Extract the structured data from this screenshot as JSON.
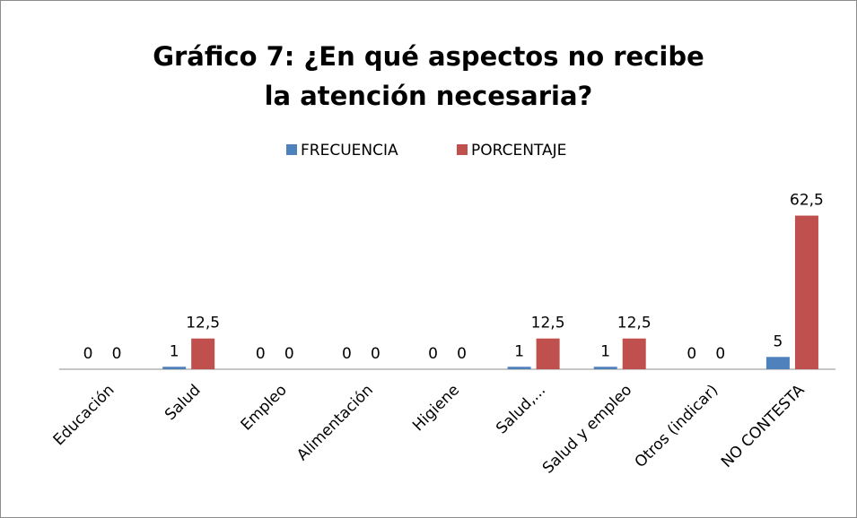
{
  "chart_data": {
    "type": "bar",
    "title": "Gráfico 7: ¿En qué aspectos no recibe la atención necesaria?",
    "categories": [
      "Educación",
      "Salud",
      "Empleo",
      "Alimentación",
      "Higiene",
      "Salud,...",
      "Salud y empleo",
      "Otros (indicar)",
      "NO CONTESTA"
    ],
    "series": [
      {
        "name": "FRECUENCIA",
        "color": "#4f81bd",
        "values": [
          0,
          1,
          0,
          0,
          0,
          1,
          1,
          0,
          5
        ]
      },
      {
        "name": "PORCENTAJE",
        "color": "#c0504d",
        "values": [
          0,
          12.5,
          0,
          0,
          0,
          12.5,
          12.5,
          0,
          62.5
        ],
        "value_labels": [
          "0",
          "12,5",
          "0",
          "0",
          "0",
          "12,5",
          "12,5",
          "0",
          "62,5"
        ]
      }
    ],
    "ylim": [
      0,
      70
    ],
    "legend": "top"
  }
}
